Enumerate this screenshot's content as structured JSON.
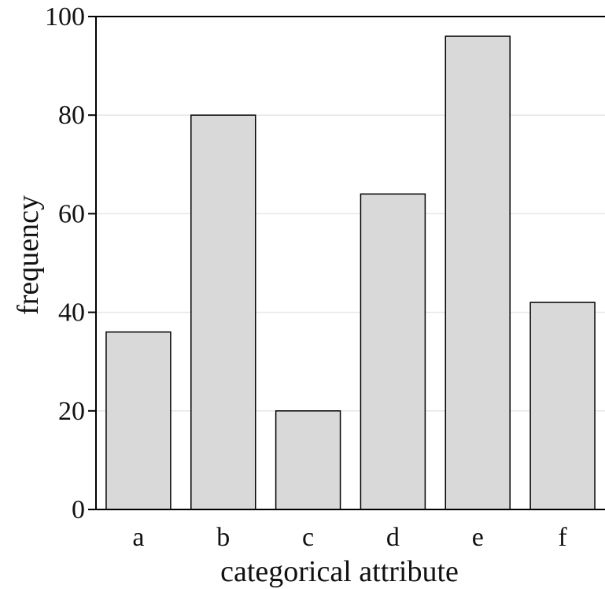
{
  "chart_data": {
    "type": "bar",
    "categories": [
      "a",
      "b",
      "c",
      "d",
      "e",
      "f"
    ],
    "values": [
      36,
      80,
      20,
      64,
      96,
      42
    ],
    "xlabel": "categorical attribute",
    "ylabel": "frequency",
    "ylim": [
      0,
      100
    ],
    "yticks": [
      0,
      20,
      40,
      60,
      80,
      100
    ],
    "ytick_labels": [
      "0",
      "20",
      "40",
      "60",
      "80",
      "100"
    ],
    "grid": true,
    "grid_axis": "y",
    "colors": {
      "bar_fill": "#d9d9d9",
      "bar_edge": "#000000",
      "grid": "#e6e6e6",
      "axis": "#000000"
    }
  }
}
